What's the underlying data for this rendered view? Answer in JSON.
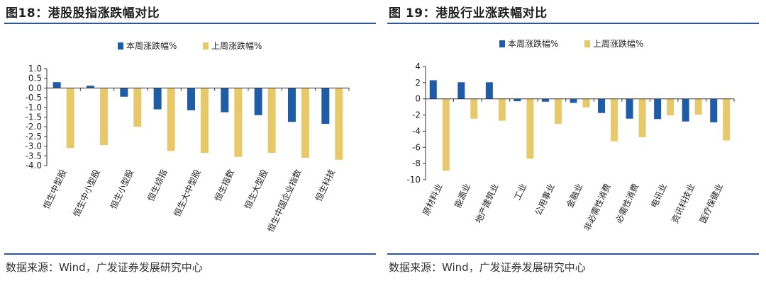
{
  "colors": {
    "this_week": "#1f5ca8",
    "last_week": "#e8c96a",
    "rule": "#2e5597",
    "axis": "#333333"
  },
  "figures": [
    {
      "title": "图18：港股股指涨跌幅对比",
      "source": "数据来源：Wind，广发证券发展研究中心"
    },
    {
      "title": "图 19：港股行业涨跌幅对比",
      "source": "数据来源：Wind，广发证券发展研究中心"
    }
  ],
  "chart_data": [
    {
      "type": "bar",
      "legend": [
        "本周涨跌幅%",
        "上周涨跌幅%"
      ],
      "categories": [
        "恒生中型股",
        "恒生中小型股",
        "恒生小型股",
        "恒生综指",
        "恒生大中型股",
        "恒生指数",
        "恒生大型股",
        "恒生中国企业指数",
        "恒生科技"
      ],
      "series": [
        {
          "name": "本周涨跌幅%",
          "values": [
            0.3,
            0.12,
            -0.45,
            -1.1,
            -1.15,
            -1.25,
            -1.4,
            -1.75,
            -1.85
          ]
        },
        {
          "name": "上周涨跌幅%",
          "values": [
            -3.1,
            -2.95,
            -2.0,
            -3.25,
            -3.35,
            -3.55,
            -3.35,
            -3.6,
            -3.7
          ]
        }
      ],
      "ylim": [
        -4.0,
        1.0
      ],
      "yticks": [
        "1.0",
        "0.5",
        "0.0",
        "-0.5",
        "-1.0",
        "-1.5",
        "-2.0",
        "-2.5",
        "-3.0",
        "-3.5",
        "-4.0"
      ],
      "legend_position": "top"
    },
    {
      "type": "bar",
      "legend": [
        "本周涨跌幅%",
        "上周涨跌幅%"
      ],
      "categories": [
        "原材料业",
        "能源业",
        "地产建筑业",
        "工业",
        "公用事业",
        "金融业",
        "非必需性消费",
        "必需性消费",
        "电讯业",
        "资讯科技业",
        "医疗保健业"
      ],
      "series": [
        {
          "name": "本周涨跌幅%",
          "values": [
            2.3,
            2.05,
            2.05,
            -0.3,
            -0.35,
            -0.5,
            -1.75,
            -2.45,
            -2.5,
            -2.8,
            -2.9
          ]
        },
        {
          "name": "上周涨跌幅%",
          "values": [
            -8.9,
            -2.45,
            -2.7,
            -7.4,
            -3.1,
            -1.05,
            -5.25,
            -4.75,
            -2.05,
            -1.95,
            -5.15
          ]
        }
      ],
      "ylim": [
        -10,
        4
      ],
      "yticks": [
        "4",
        "2",
        "0",
        "-2",
        "-4",
        "-6",
        "-8",
        "-10"
      ],
      "legend_position": "top"
    }
  ]
}
